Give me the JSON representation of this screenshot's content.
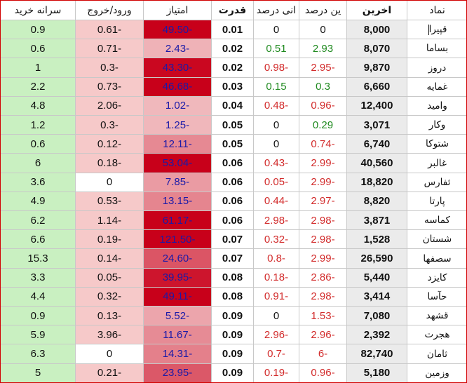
{
  "headers": [
    "نماد",
    "اخرین",
    "پایانی درصد",
    "آخرین درصد",
    "قدرت",
    "امتیاز",
    "ورود/خروج",
    "سرانه خرید"
  ],
  "headers_display": [
    "نماد",
    "اخرین",
    "ین درصد",
    "انی درصد",
    "قدرت",
    "امتیاز",
    "ورود/خروج",
    "سرانه خرید"
  ],
  "colors": {
    "negative": "#d22b2b",
    "positive": "#1f8a1f",
    "score_text": "#1a1aa8",
    "score_scale_light": "#f1bcc0",
    "score_scale_dark": "#c8001a",
    "flow_bg": "#f6c9c9",
    "per_capita_bg": "#c9f0c1",
    "last_bg": "#ebebeb",
    "frame": "#d10000"
  },
  "rows": [
    {
      "symbol": "قپیرا",
      "last": "8,000",
      "pct_a": "0",
      "pct_b": "0",
      "power": "0.01",
      "score": "-49.50",
      "flow": "-0.61",
      "per_capita": "0.9"
    },
    {
      "symbol": "بساما",
      "last": "8,070",
      "pct_a": "2.93",
      "pct_b": "0.51",
      "power": "0.02",
      "score": "-2.43",
      "flow": "-0.71",
      "per_capita": "0.6"
    },
    {
      "symbol": "دروز",
      "last": "9,870",
      "pct_a": "-2.95",
      "pct_b": "-0.98",
      "power": "0.02",
      "score": "-43.30",
      "flow": "-0.3",
      "per_capita": "1"
    },
    {
      "symbol": "غمایه",
      "last": "6,660",
      "pct_a": "0.3",
      "pct_b": "0.15",
      "power": "0.03",
      "score": "-46.68",
      "flow": "-0.73",
      "per_capita": "2.2"
    },
    {
      "symbol": "وامید",
      "last": "12,400",
      "pct_a": "-0.96",
      "pct_b": "-0.48",
      "power": "0.04",
      "score": "-1.02",
      "flow": "-2.06",
      "per_capita": "4.8"
    },
    {
      "symbol": "وکار",
      "last": "3,071",
      "pct_a": "0.29",
      "pct_b": "0",
      "power": "0.05",
      "score": "-1.25",
      "flow": "-0.3",
      "per_capita": "1.2"
    },
    {
      "symbol": "شتوکا",
      "last": "6,740",
      "pct_a": "-0.74",
      "pct_b": "0",
      "power": "0.05",
      "score": "-12.11",
      "flow": "-0.12",
      "per_capita": "0.6"
    },
    {
      "symbol": "غالبر",
      "last": "40,560",
      "pct_a": "-2.99",
      "pct_b": "-0.43",
      "power": "0.06",
      "score": "-53.04",
      "flow": "-0.18",
      "per_capita": "6"
    },
    {
      "symbol": "ثفارس",
      "last": "18,820",
      "pct_a": "-2.99",
      "pct_b": "-0.05",
      "power": "0.06",
      "score": "-7.85",
      "flow": "0",
      "per_capita": "3.6"
    },
    {
      "symbol": "پارتا",
      "last": "8,820",
      "pct_a": "-2.97",
      "pct_b": "-0.44",
      "power": "0.06",
      "score": "-13.15",
      "flow": "-0.53",
      "per_capita": "4.9"
    },
    {
      "symbol": "کماسه",
      "last": "3,871",
      "pct_a": "-2.98",
      "pct_b": "-2.98",
      "power": "0.06",
      "score": "-61.17",
      "flow": "-1.14",
      "per_capita": "6.2"
    },
    {
      "symbol": "شستان",
      "last": "1,528",
      "pct_a": "-2.98",
      "pct_b": "-0.32",
      "power": "0.07",
      "score": "-121.50",
      "flow": "-0.19",
      "per_capita": "6.6"
    },
    {
      "symbol": "سصفها",
      "last": "26,590",
      "pct_a": "-2.99",
      "pct_b": "-0.8",
      "power": "0.07",
      "score": "-24.60",
      "flow": "-0.14",
      "per_capita": "15.3"
    },
    {
      "symbol": "کایزد",
      "last": "5,440",
      "pct_a": "-2.86",
      "pct_b": "-0.18",
      "power": "0.08",
      "score": "-39.95",
      "flow": "-0.05",
      "per_capita": "3.3"
    },
    {
      "symbol": "حآسا",
      "last": "3,414",
      "pct_a": "-2.98",
      "pct_b": "-0.91",
      "power": "0.08",
      "score": "-49.11",
      "flow": "-0.32",
      "per_capita": "4.4"
    },
    {
      "symbol": "قشهد",
      "last": "7,080",
      "pct_a": "-1.53",
      "pct_b": "0",
      "power": "0.09",
      "score": "-5.52",
      "flow": "-0.13",
      "per_capita": "0.9"
    },
    {
      "symbol": "هجرت",
      "last": "2,392",
      "pct_a": "-2.96",
      "pct_b": "-2.96",
      "power": "0.09",
      "score": "-11.67",
      "flow": "-3.96",
      "per_capita": "5.9"
    },
    {
      "symbol": "ثامان",
      "last": "82,740",
      "pct_a": "-6",
      "pct_b": "-0.7",
      "power": "0.09",
      "score": "-14.31",
      "flow": "0",
      "per_capita": "6.3"
    },
    {
      "symbol": "وزمین",
      "last": "5,180",
      "pct_a": "-0.96",
      "pct_b": "-0.19",
      "power": "0.09",
      "score": "-23.95",
      "flow": "-0.21",
      "per_capita": "5"
    }
  ]
}
